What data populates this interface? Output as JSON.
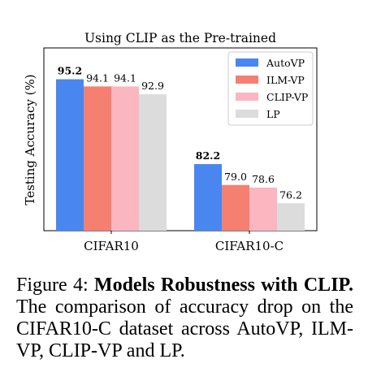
{
  "chart_data": {
    "type": "bar",
    "title": "Using CLIP as the Pre-trained",
    "xlabel": "",
    "ylabel": "Testing Accuracy (%)",
    "ylim": [
      0,
      100
    ],
    "grid": false,
    "legend_position": "top-right",
    "categories": [
      "CIFAR10",
      "CIFAR10-C"
    ],
    "series": [
      {
        "name": "AutoVP",
        "values": [
          95.2,
          82.2
        ],
        "labels": [
          "95.2",
          "82.2"
        ],
        "color": "#4a86f0",
        "bold_labels": true
      },
      {
        "name": "ILM-VP",
        "values": [
          94.1,
          79.0
        ],
        "labels": [
          "94.1",
          "79.0"
        ],
        "color": "#f57f70",
        "bold_labels": false
      },
      {
        "name": "CLIP-VP",
        "values": [
          94.1,
          78.6
        ],
        "labels": [
          "94.1",
          "78.6"
        ],
        "color": "#fbb6c0",
        "bold_labels": false
      },
      {
        "name": "LP",
        "values": [
          92.9,
          76.2
        ],
        "labels": [
          "92.9",
          "76.2"
        ],
        "color": "#dcdcdc",
        "bold_labels": false
      }
    ]
  },
  "caption": {
    "figure_label": "Figure 4:",
    "bold_text": "Models Robustness with CLIP.",
    "text": "The comparison of accuracy drop on the CIFAR10-C dataset across AutoVP, ILM-VP, CLIP-VP and LP."
  }
}
